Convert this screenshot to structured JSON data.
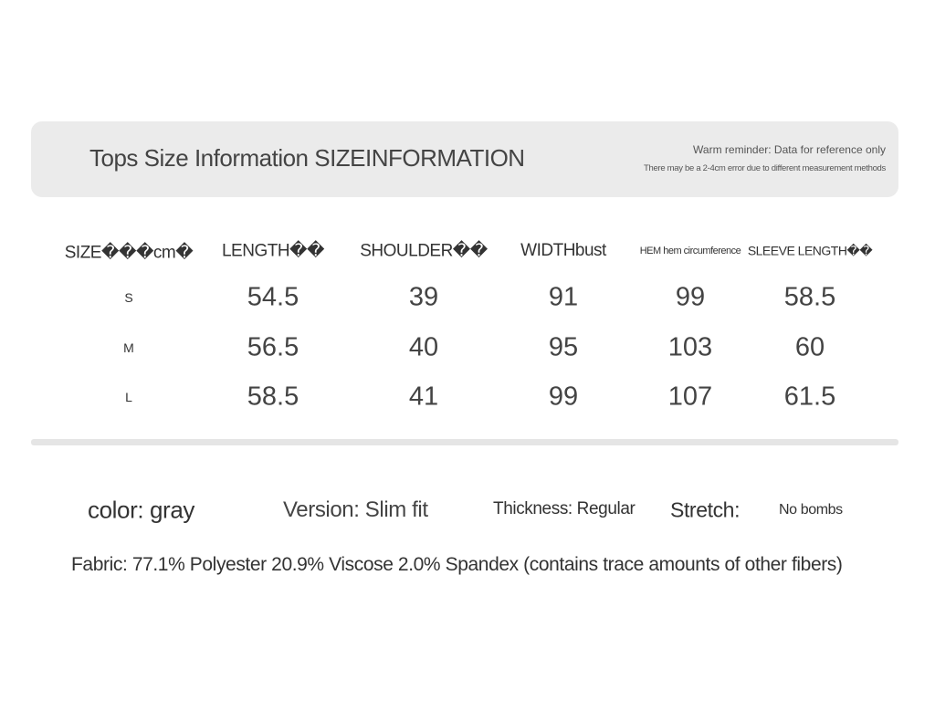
{
  "header": {
    "title": "Tops Size Information SIZEINFORMATION",
    "reminder": "Warm reminder: Data for reference only",
    "note": "There may be a 2-4cm error due to different measurement methods"
  },
  "table": {
    "columns": [
      "SIZE���cm�",
      "LENGTH��",
      "SHOULDER��",
      "WIDTHbust",
      "HEM hem circumference",
      "SLEEVE LENGTH��"
    ],
    "rows": [
      [
        "S",
        "54.5",
        "39",
        "91",
        "99",
        "58.5"
      ],
      [
        "M",
        "56.5",
        "40",
        "95",
        "103",
        "60"
      ],
      [
        "L",
        "58.5",
        "41",
        "99",
        "107",
        "61.5"
      ]
    ]
  },
  "attributes": {
    "color": "color: gray",
    "version": "Version: Slim fit",
    "thickness": "Thickness: Regular",
    "stretch_label": "Stretch:",
    "stretch_value": "No bombs",
    "fabric": "Fabric: 77.1% Polyester 20.9% Viscose 2.0% Spandex (contains trace amounts of other fibers)"
  }
}
